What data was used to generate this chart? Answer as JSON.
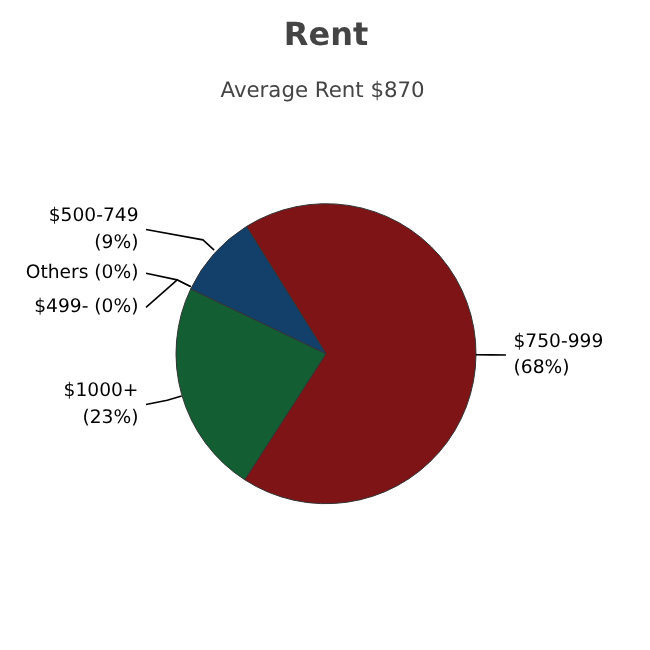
{
  "chart_data": {
    "type": "pie",
    "title": "Rent",
    "subtitle": "Average Rent  $870",
    "categories": [
      "$750-999",
      "$1000+",
      "Others",
      "$499-",
      "$500-749"
    ],
    "values": [
      68,
      23,
      0,
      0,
      9
    ],
    "value_labels": [
      "(68%)",
      "(23%)",
      "(0%)",
      "(0%)",
      "(9%)"
    ],
    "colors": [
      "#7f1416",
      "#135e32",
      "#6b8e23",
      "#c8a000",
      "#13406b"
    ]
  }
}
